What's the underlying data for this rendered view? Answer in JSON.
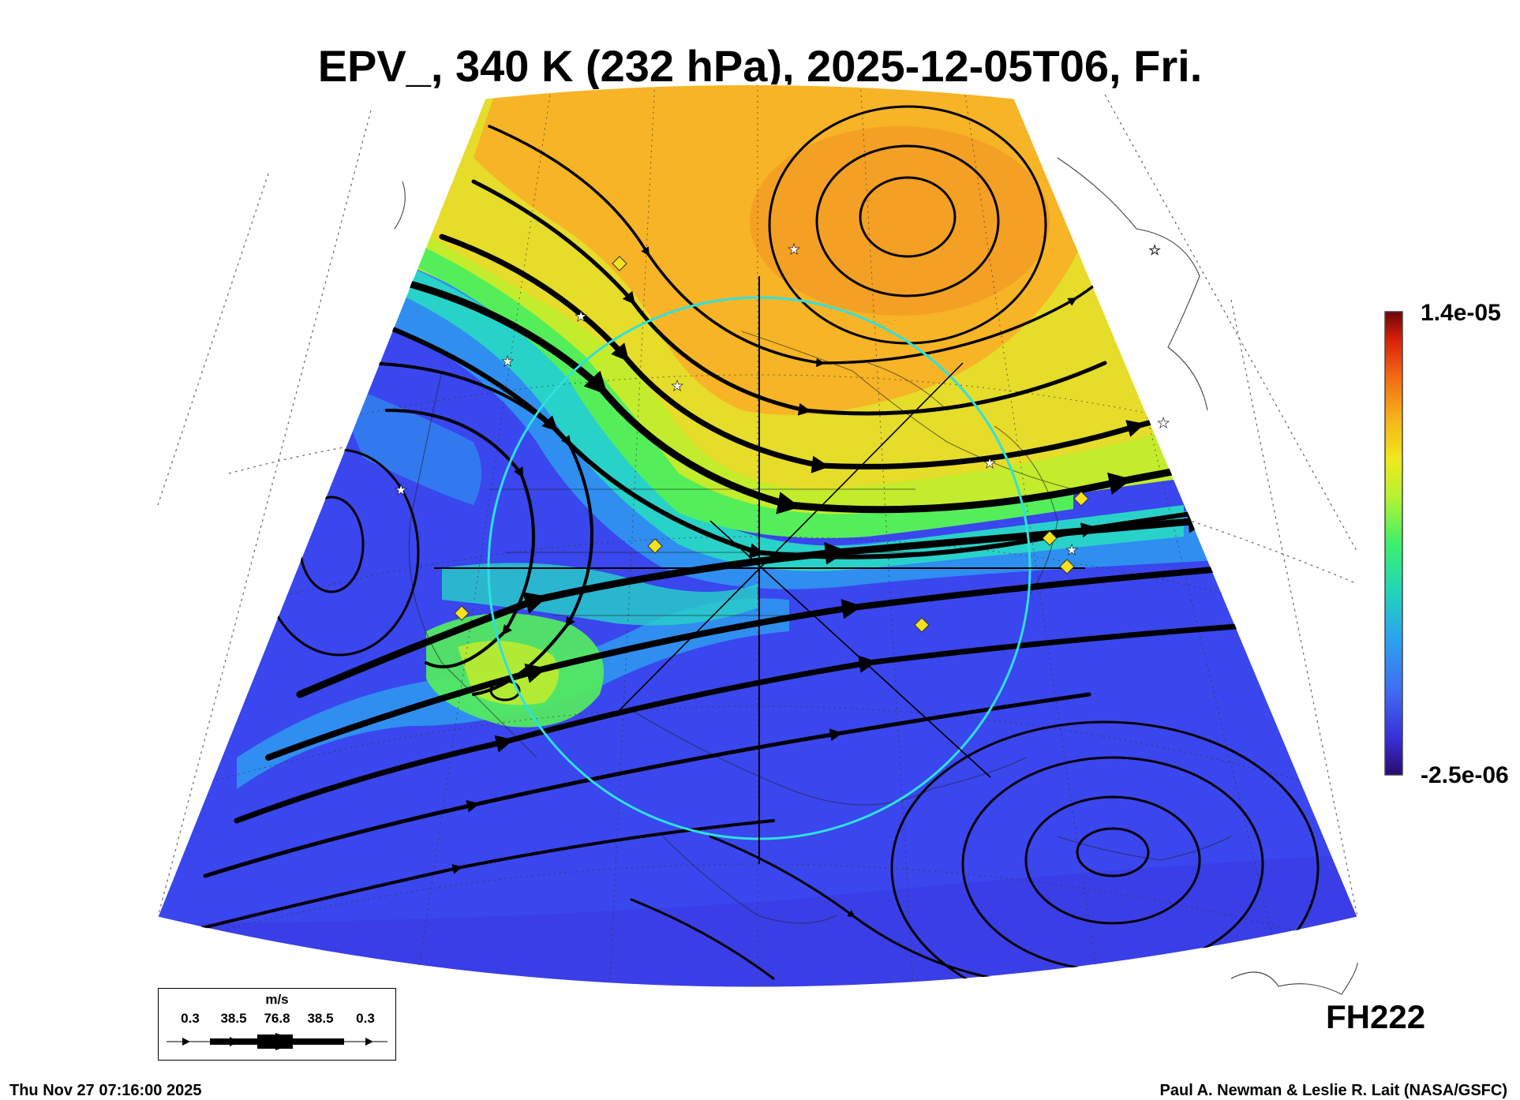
{
  "title": "EPV_, 340 K (232 hPa), 2025-12-05T06, Fri.",
  "colorbar": {
    "max_label": "1.4e-05",
    "min_label": "-2.5e-06",
    "colors": [
      "#2a0a6e",
      "#3a2fd8",
      "#3f6cf2",
      "#2aa6ec",
      "#22d6b8",
      "#3ef06a",
      "#b6f232",
      "#f0e81e",
      "#f6b21a",
      "#f26a14",
      "#d8200c",
      "#6a0606"
    ]
  },
  "field_colors": {
    "low": "#3a46ee",
    "mid_blue": "#2f8ef0",
    "cyan": "#28d2c8",
    "green": "#54ee5a",
    "yellow_green": "#c2ec2c",
    "yellow": "#e6dc2a",
    "orange": "#f6b426",
    "deep_orange": "#f39022"
  },
  "legend": {
    "unit": "m/s",
    "ticks": [
      "0.3",
      "38.5",
      "76.8",
      "38.5",
      "0.3"
    ]
  },
  "forecast_hour": "FH222",
  "footer_left": "Thu Nov 27 07:16:00 2025",
  "footer_right": "Paul A. Newman & Leslie R. Lait (NASA/GSFC)",
  "symbols": {
    "white_star_icon": "star",
    "yellow_diamond_icon": "diamond"
  }
}
